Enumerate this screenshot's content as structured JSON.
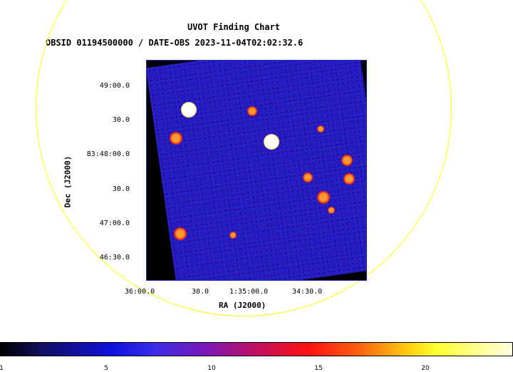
{
  "header": {
    "title": "UVOT Finding Chart",
    "subtitle": "OBSID 01194500000 / DATE-OBS 2023-11-04T02:02:32.6"
  },
  "axes": {
    "y_label": "Dec (J2000)",
    "x_label": "RA (J2000)",
    "y_ticks": [
      "49:00.0",
      "30.0",
      "83:48:00.0",
      "30.0",
      "47:00.0",
      "46:30.0"
    ],
    "x_ticks": [
      "36:00.0",
      "30.0",
      "1:35:00.0",
      "34:30.0"
    ]
  },
  "colorbar": {
    "ticks": [
      "1",
      "5",
      "10",
      "15",
      "20"
    ]
  },
  "colors": {
    "circle": "#ffff00",
    "detector_bg": "#1e1ec6",
    "frame_border": "#2030c0"
  }
}
